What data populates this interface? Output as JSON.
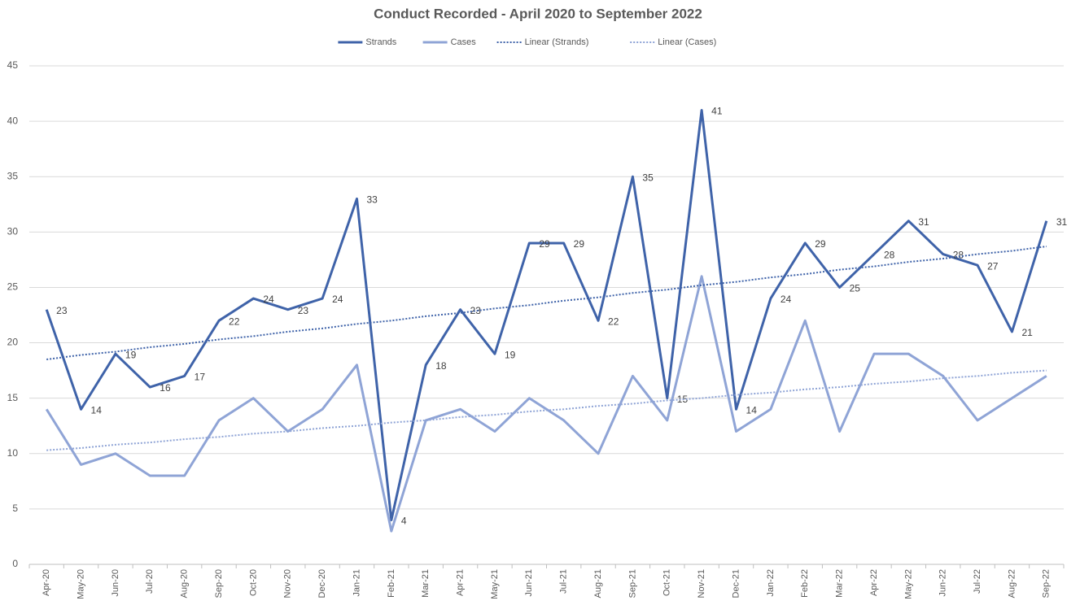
{
  "chart_data": {
    "type": "line",
    "title": "Conduct Recorded - April 2020 to September 2022",
    "categories": [
      "Apr-20",
      "May-20",
      "Jun-20",
      "Jul-20",
      "Aug-20",
      "Sep-20",
      "Oct-20",
      "Nov-20",
      "Dec-20",
      "Jan-21",
      "Feb-21",
      "Mar-21",
      "Apr-21",
      "May-21",
      "Jun-21",
      "Jul-21",
      "Aug-21",
      "Sep-21",
      "Oct-21",
      "Nov-21",
      "Dec-21",
      "Jan-22",
      "Feb-22",
      "Mar-22",
      "Apr-22",
      "May-22",
      "Jun-22",
      "Jul-22",
      "Aug-22",
      "Sep-22"
    ],
    "series": [
      {
        "name": "Strands",
        "color": "#3f63a9",
        "style": "solid",
        "data_labels": true,
        "values": [
          23,
          14,
          19,
          16,
          17,
          22,
          24,
          23,
          24,
          33,
          4,
          18,
          23,
          19,
          29,
          29,
          22,
          35,
          15,
          41,
          14,
          24,
          29,
          25,
          28,
          31,
          28,
          27,
          21,
          31
        ]
      },
      {
        "name": "Cases",
        "color": "#8fa4d6",
        "style": "solid",
        "values": [
          14,
          9,
          10,
          8,
          8,
          13,
          15,
          12,
          14,
          18,
          3,
          13,
          14,
          12,
          15,
          13,
          10,
          17,
          13,
          26,
          12,
          14,
          22,
          12,
          19,
          19,
          17,
          13,
          15,
          17
        ]
      },
      {
        "name": "Linear (Strands)",
        "color": "#3f63a9",
        "style": "dotted",
        "values": [
          18.5,
          18.9,
          19.2,
          19.6,
          19.9,
          20.3,
          20.6,
          21.0,
          21.3,
          21.7,
          22.0,
          22.4,
          22.7,
          23.1,
          23.4,
          23.8,
          24.1,
          24.5,
          24.8,
          25.2,
          25.5,
          25.9,
          26.2,
          26.6,
          26.9,
          27.3,
          27.6,
          28.0,
          28.3,
          28.7
        ]
      },
      {
        "name": "Linear (Cases)",
        "color": "#8fa4d6",
        "style": "dotted",
        "values": [
          10.3,
          10.5,
          10.8,
          11.0,
          11.3,
          11.5,
          11.8,
          12.0,
          12.3,
          12.5,
          12.8,
          13.0,
          13.3,
          13.5,
          13.8,
          14.0,
          14.3,
          14.5,
          14.8,
          15.0,
          15.3,
          15.5,
          15.8,
          16.0,
          16.3,
          16.5,
          16.8,
          17.0,
          17.3,
          17.5
        ]
      }
    ],
    "ylim": [
      0,
      45
    ],
    "yticks": [
      0,
      5,
      10,
      15,
      20,
      25,
      30,
      35,
      40,
      45
    ],
    "grid": true,
    "legend": "top"
  }
}
